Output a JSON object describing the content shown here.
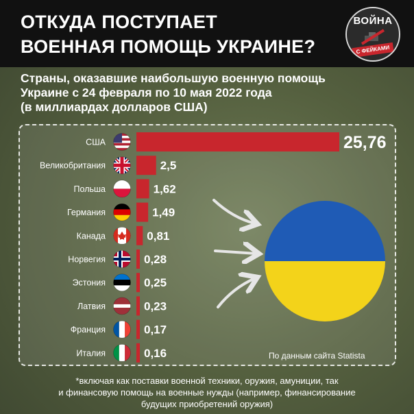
{
  "header": {
    "title_line1": "ОТКУДА ПОСТУПАЕТ",
    "title_line2": "ВОЕННАЯ ПОМОЩЬ УКРАИНЕ?"
  },
  "logo": {
    "top_text": "ВОЙНА",
    "bottom_text": "С ФЕЙКАМИ"
  },
  "subtitle": {
    "line1": "Страны, оказавшие наибольшую военную помощь",
    "line2": "Украине с 24 февраля по 10 мая 2022 года",
    "line3": "(в миллиардах долларов США)"
  },
  "source": "По данным сайта Statista",
  "footnote": {
    "line1": "*включая как поставки военной техники, оружия, амуниции, так",
    "line2": "и финансовую помощь на военные нужды (например, финансирование",
    "line3": "будущих приобретений оружия)"
  },
  "colors": {
    "bar": "#c8262d",
    "ukraine_blue": "#1f5bb5",
    "ukraine_yellow": "#f3d31a"
  },
  "chart_data": {
    "type": "bar",
    "orientation": "horizontal",
    "categories": [
      "США",
      "Великобритания",
      "Польша",
      "Германия",
      "Канада",
      "Норвегия",
      "Эстония",
      "Латвия",
      "Франция",
      "Италия"
    ],
    "values": [
      25.76,
      2.5,
      1.62,
      1.49,
      0.81,
      0.28,
      0.25,
      0.23,
      0.17,
      0.16
    ],
    "value_labels": [
      "25,76",
      "2,5",
      "1,62",
      "1,49",
      "0,81",
      "0,28",
      "0,25",
      "0,23",
      "0,17",
      "0,16"
    ],
    "flags": [
      "us-flag-icon",
      "uk-flag-icon",
      "poland-flag-icon",
      "germany-flag-icon",
      "canada-flag-icon",
      "norway-flag-icon",
      "estonia-flag-icon",
      "latvia-flag-icon",
      "france-flag-icon",
      "italy-flag-icon"
    ],
    "xlim": [
      0,
      25.76
    ],
    "grid": false,
    "legend": "none"
  }
}
